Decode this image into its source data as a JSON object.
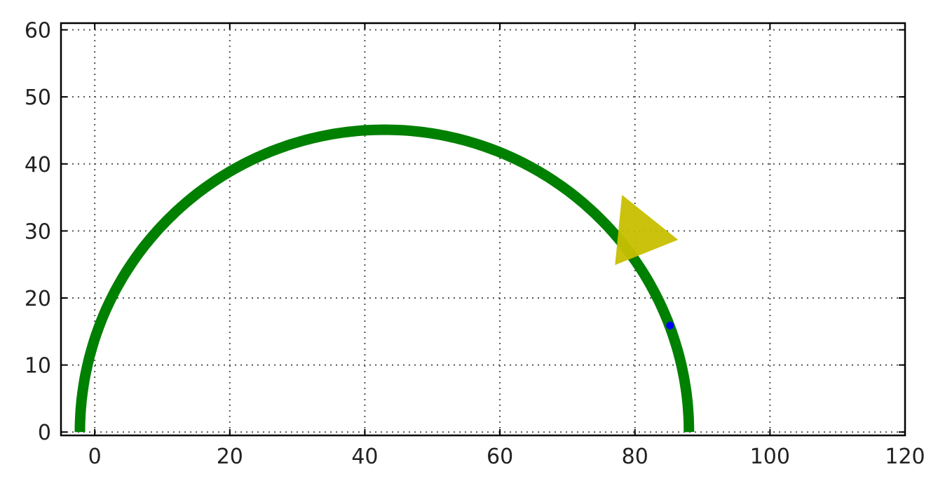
{
  "chart_data": {
    "type": "scatter",
    "title": "",
    "xlabel": "",
    "ylabel": "",
    "xlim": [
      -5,
      120
    ],
    "ylim": [
      -0.5,
      61
    ],
    "xticks": [
      0,
      20,
      40,
      60,
      80,
      100,
      120
    ],
    "yticks": [
      0,
      10,
      20,
      30,
      40,
      50,
      60
    ],
    "xtick_labels": [
      "0",
      "20",
      "40",
      "60",
      "80",
      "100",
      "120"
    ],
    "ytick_labels": [
      "0",
      "10",
      "20",
      "30",
      "40",
      "50",
      "60"
    ],
    "grid": true,
    "grid_style": "dotted",
    "series": [
      {
        "kind": "arc",
        "center": [
          42.9,
          0
        ],
        "radius": 45.1,
        "angle_start_deg": 0,
        "angle_end_deg": 180,
        "color": "#008000"
      },
      {
        "kind": "point",
        "x": 85.2,
        "y": 15.9,
        "color": "#0000ff"
      },
      {
        "kind": "triangle-marker",
        "x": 81.2,
        "y": 29.1,
        "direction": "right",
        "color": "#c8bf00"
      }
    ]
  }
}
